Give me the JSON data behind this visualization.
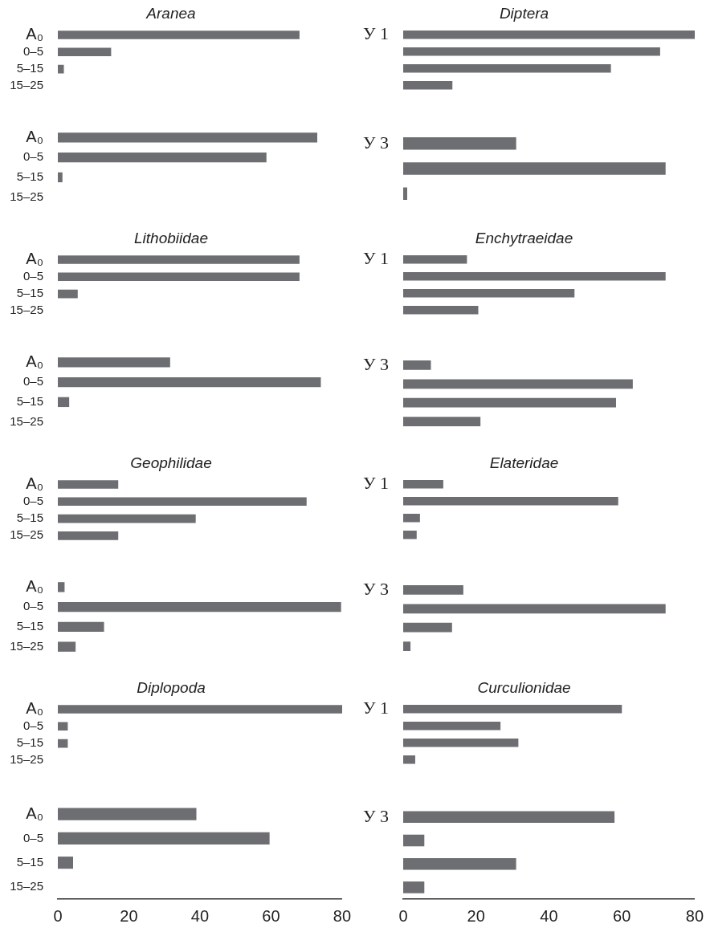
{
  "chart_data": [
    {
      "type": "bar",
      "orientation": "horizontal",
      "title": "Aranea",
      "categories": [
        "A₀",
        "0–5",
        "5–15",
        "15–25"
      ],
      "values": [
        68,
        15,
        1.7,
        0
      ],
      "color": "#6d6e72",
      "xlim": [
        0,
        80
      ],
      "xticks": [
        0,
        20,
        40,
        60,
        80
      ],
      "tick_labels": "y"
    },
    {
      "type": "bar",
      "orientation": "horizontal",
      "title": "Diptera",
      "categories": [
        "У 1",
        null,
        null,
        null
      ],
      "values": [
        80,
        70.5,
        57,
        13.5
      ],
      "color": "#6d6e72",
      "xlim": [
        0,
        80
      ],
      "xticks": [
        0,
        20,
        40,
        60,
        80
      ],
      "tick_labels": "y"
    },
    {
      "type": "bar",
      "orientation": "horizontal",
      "categories": [
        "A₀",
        "0–5",
        "5–15",
        "15–25"
      ],
      "values": [
        73,
        58.7,
        1.3,
        0
      ],
      "color": "#6d6e72",
      "xlim": [
        0,
        80
      ],
      "xticks": [
        0,
        20,
        40,
        60,
        80
      ],
      "tick_labels": "y"
    },
    {
      "type": "bar",
      "orientation": "horizontal",
      "categories": [
        "У 3",
        null,
        null
      ],
      "values": [
        31,
        72,
        1.1
      ],
      "color": "#6d6e72",
      "xlim": [
        0,
        80
      ],
      "xticks": [
        0,
        20,
        40,
        60,
        80
      ],
      "tick_labels": "y"
    },
    {
      "type": "bar",
      "orientation": "horizontal",
      "title": "Lithobiidae",
      "categories": [
        "A₀",
        "0–5",
        "5–15",
        "15–25"
      ],
      "values": [
        68,
        68,
        5.6,
        0
      ],
      "color": "#6d6e72",
      "xlim": [
        0,
        80
      ],
      "xticks": [
        0,
        20,
        40,
        60,
        80
      ],
      "tick_labels": "y"
    },
    {
      "type": "bar",
      "orientation": "horizontal",
      "title": "Enchytraeidae",
      "categories": [
        "У 1",
        null,
        null,
        null
      ],
      "values": [
        17.5,
        72,
        47,
        20.6
      ],
      "color": "#6d6e72",
      "xlim": [
        0,
        80
      ],
      "xticks": [
        0,
        20,
        40,
        60,
        80
      ],
      "tick_labels": "y"
    },
    {
      "type": "bar",
      "orientation": "horizontal",
      "categories": [
        "A₀",
        "0–5",
        "5–15",
        "15–25"
      ],
      "values": [
        31.6,
        74,
        3.2,
        0
      ],
      "color": "#6d6e72",
      "xlim": [
        0,
        80
      ],
      "xticks": [
        0,
        20,
        40,
        60,
        80
      ],
      "tick_labels": "y"
    },
    {
      "type": "bar",
      "orientation": "horizontal",
      "categories": [
        "У 3",
        null,
        null,
        null
      ],
      "values": [
        7.6,
        63,
        58.4,
        21.2
      ],
      "color": "#6d6e72",
      "xlim": [
        0,
        80
      ],
      "xticks": [
        0,
        20,
        40,
        60,
        80
      ],
      "tick_labels": "y"
    },
    {
      "type": "bar",
      "orientation": "horizontal",
      "title": "Geophilidae",
      "categories": [
        "A₀",
        "0–5",
        "5–15",
        "15–25"
      ],
      "values": [
        17,
        70,
        38.8,
        17
      ],
      "color": "#6d6e72",
      "xlim": [
        0,
        80
      ],
      "xticks": [
        0,
        20,
        40,
        60,
        80
      ],
      "tick_labels": "y"
    },
    {
      "type": "bar",
      "orientation": "horizontal",
      "title": "Elateridae",
      "categories": [
        "У 1",
        null,
        null,
        null
      ],
      "values": [
        11,
        59,
        4.6,
        3.7
      ],
      "color": "#6d6e72",
      "xlim": [
        0,
        80
      ],
      "xticks": [
        0,
        20,
        40,
        60,
        80
      ],
      "tick_labels": "y"
    },
    {
      "type": "bar",
      "orientation": "horizontal",
      "categories": [
        "A₀",
        "0–5",
        "5–15",
        "15–25"
      ],
      "values": [
        1.9,
        79.7,
        13,
        5
      ],
      "color": "#6d6e72",
      "xlim": [
        0,
        80
      ],
      "xticks": [
        0,
        20,
        40,
        60,
        80
      ],
      "tick_labels": "y"
    },
    {
      "type": "bar",
      "orientation": "horizontal",
      "categories": [
        "У 3",
        null,
        null,
        null
      ],
      "values": [
        16.5,
        72,
        13.4,
        2
      ],
      "color": "#6d6e72",
      "xlim": [
        0,
        80
      ],
      "xticks": [
        0,
        20,
        40,
        60,
        80
      ],
      "tick_labels": "y"
    },
    {
      "type": "bar",
      "orientation": "horizontal",
      "title": "Diplopoda",
      "categories": [
        "A₀",
        "0–5",
        "5–15",
        "15–25"
      ],
      "values": [
        80,
        2.8,
        2.8,
        0
      ],
      "color": "#6d6e72",
      "xlim": [
        0,
        80
      ],
      "xticks": [
        0,
        20,
        40,
        60,
        80
      ],
      "tick_labels": "y"
    },
    {
      "type": "bar",
      "orientation": "horizontal",
      "title": "Curculionidae",
      "categories": [
        "У 1",
        null,
        null,
        null
      ],
      "values": [
        60,
        26.7,
        31.6,
        3.3
      ],
      "color": "#6d6e72",
      "xlim": [
        0,
        80
      ],
      "xticks": [
        0,
        20,
        40,
        60,
        80
      ],
      "tick_labels": "y"
    },
    {
      "type": "bar",
      "orientation": "horizontal",
      "categories": [
        "A₀",
        "0–5",
        "5–15",
        "15–25"
      ],
      "values": [
        39,
        59.6,
        4.3,
        0
      ],
      "color": "#6d6e72",
      "xlim": [
        0,
        80
      ],
      "xticks": [
        0,
        20,
        40,
        60,
        80
      ]
    },
    {
      "type": "bar",
      "orientation": "horizontal",
      "categories": [
        "У 3",
        null,
        null,
        null
      ],
      "values": [
        58,
        5.8,
        31,
        5.8
      ],
      "color": "#6d6e72",
      "xlim": [
        0,
        80
      ],
      "xticks": [
        0,
        20,
        40,
        60,
        80
      ]
    }
  ]
}
